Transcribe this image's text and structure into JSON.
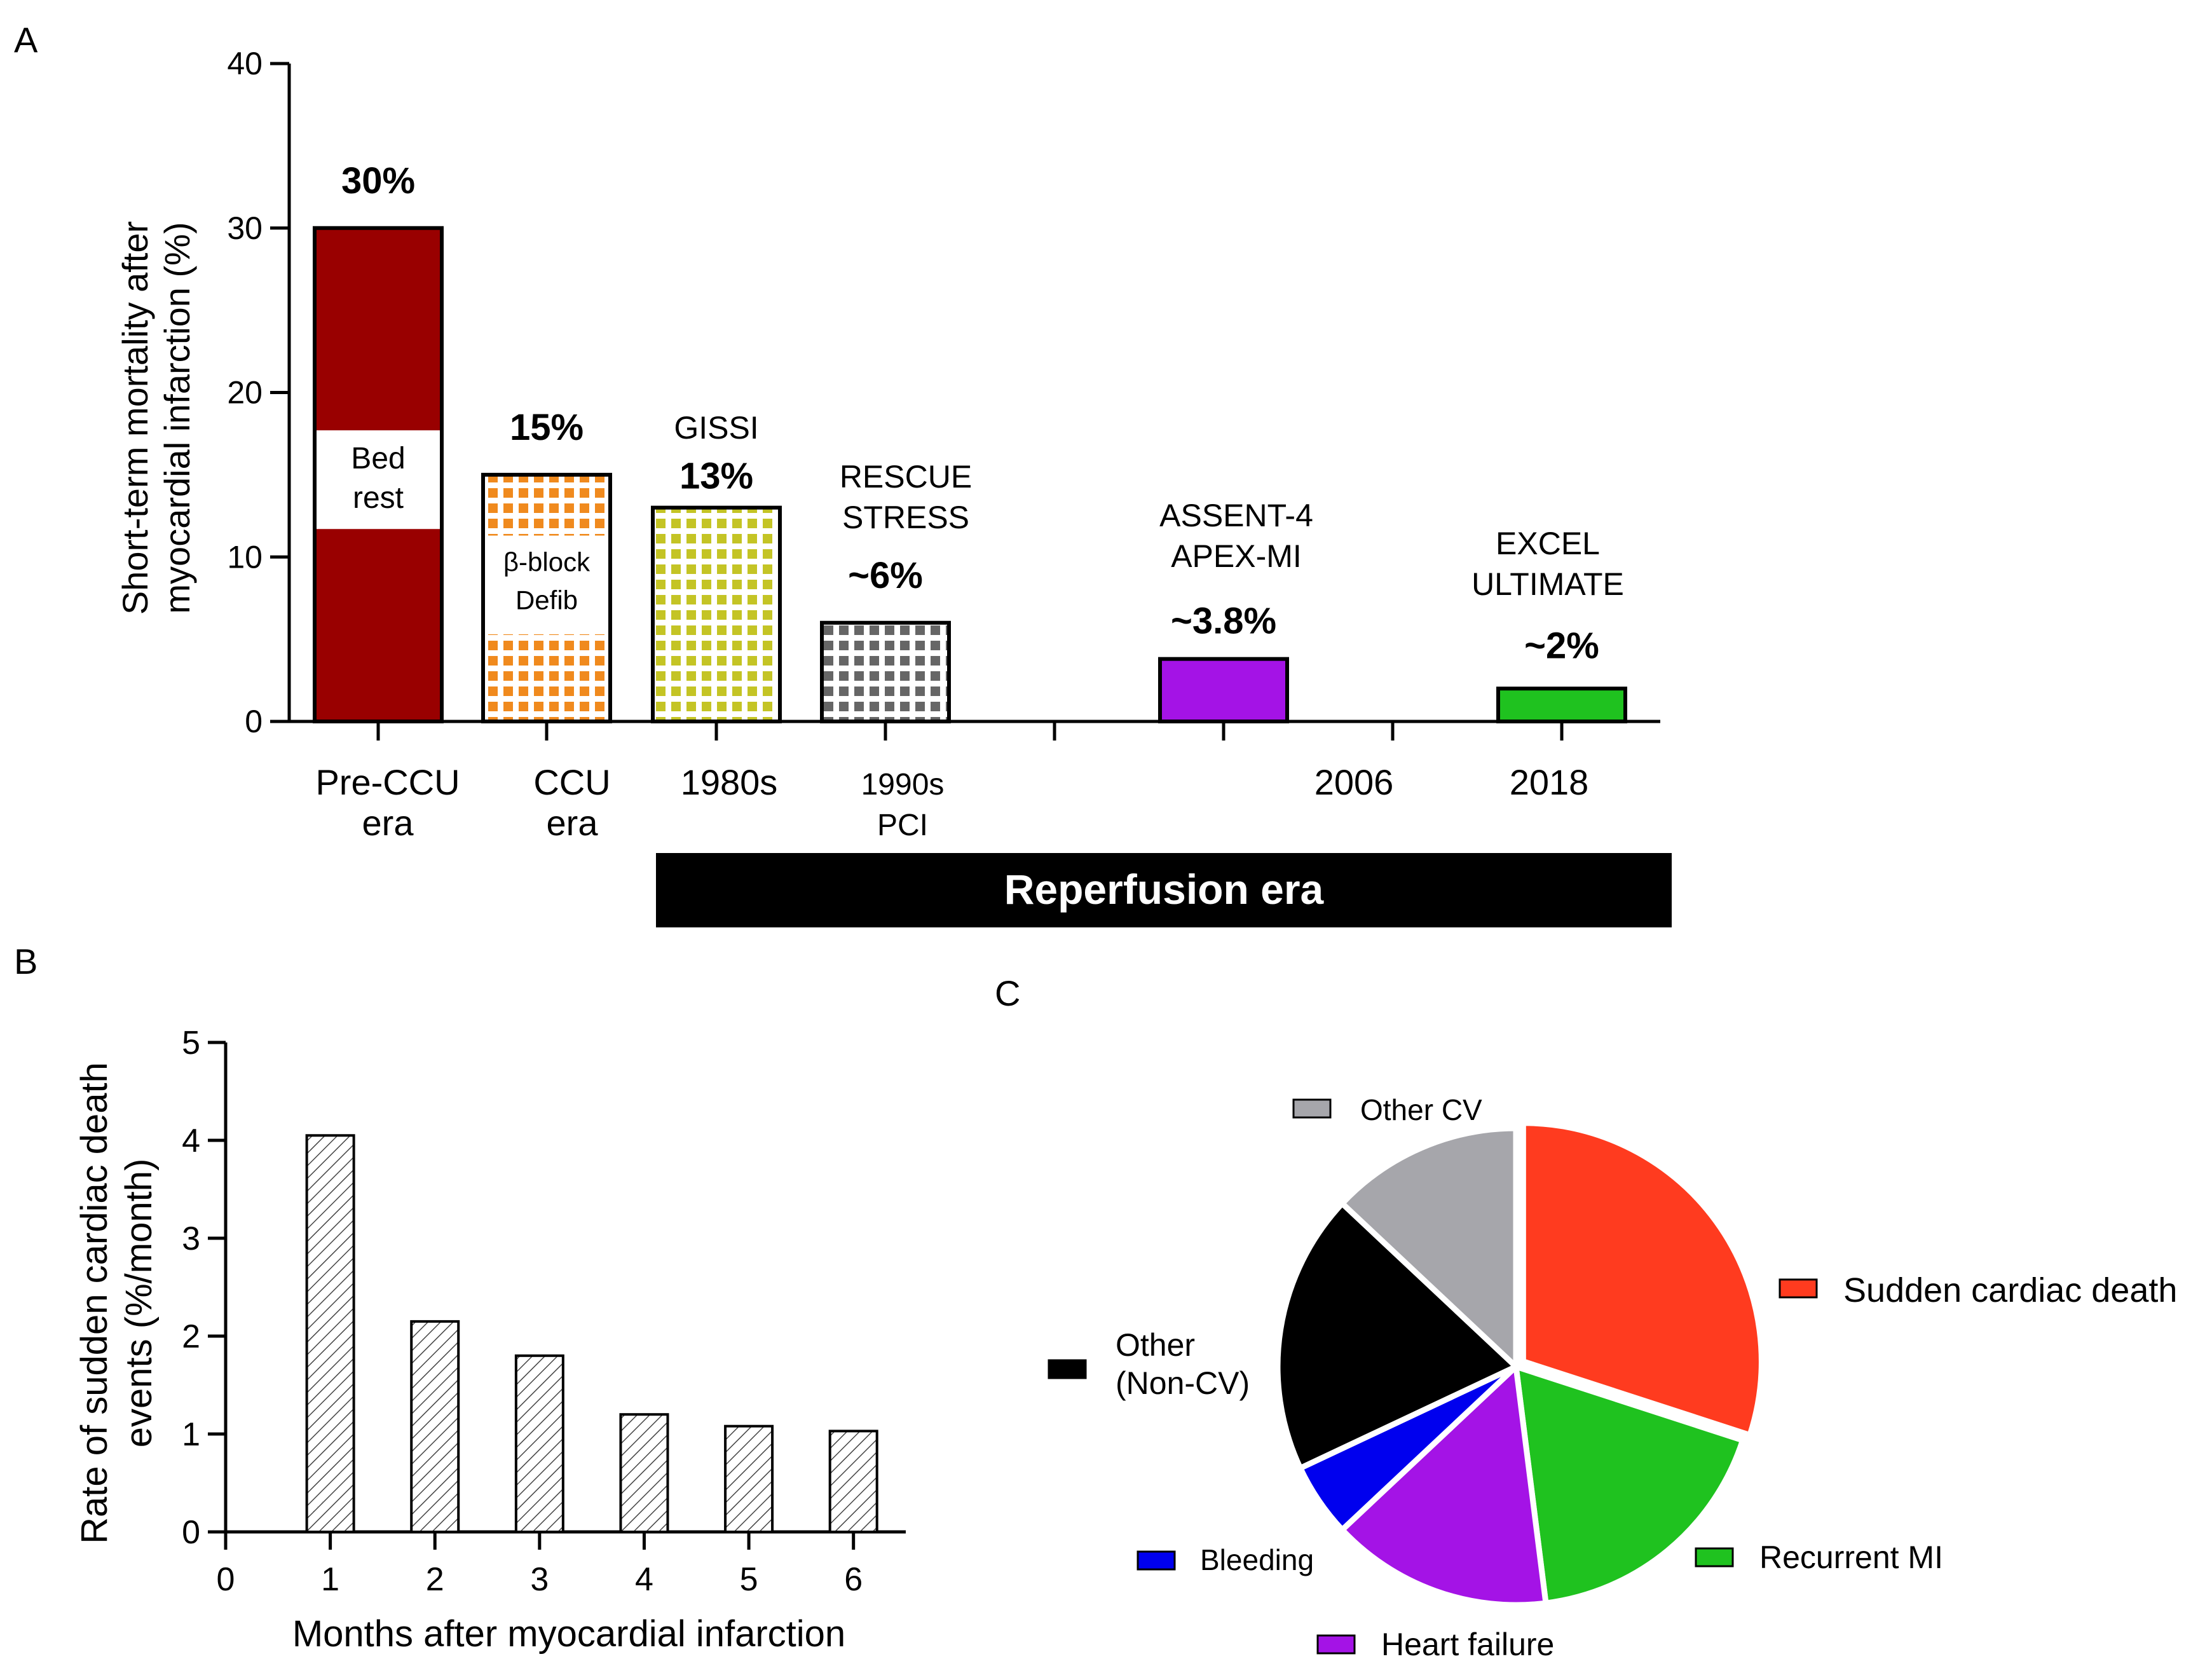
{
  "panel_labels": {
    "a": "A",
    "b": "B",
    "c": "C"
  },
  "chart_data": [
    {
      "id": "A",
      "type": "bar",
      "ylabel_lines": [
        "Short-term mortality after",
        "myocardial infarction (%)"
      ],
      "ylim": [
        0,
        40
      ],
      "yticks": [
        "0",
        "10",
        "20",
        "30",
        "40"
      ],
      "bars": [
        {
          "x_label_lines": [
            "Pre-CCU",
            "era"
          ],
          "value": 30,
          "value_label": "30%",
          "color": "#990000",
          "pattern": "solid",
          "inner_lines": [
            "Bed",
            "rest"
          ],
          "header_lines": []
        },
        {
          "x_label_lines": [
            "CCU",
            "era"
          ],
          "value": 15,
          "value_label": "15%",
          "color": "#f08a1e",
          "pattern": "grid",
          "inner_lines": [
            "β-block",
            "Defib"
          ],
          "header_lines": []
        },
        {
          "x_label_lines": [
            "1980s"
          ],
          "value": 13,
          "value_label": "13%",
          "color": "#c4c425",
          "pattern": "grid",
          "inner_lines": [],
          "header_lines": [
            "GISSI"
          ]
        },
        {
          "x_label_lines": [
            "1990s",
            "PCI"
          ],
          "value": 6,
          "value_label": "~6%",
          "color": "#666666",
          "pattern": "grid",
          "inner_lines": [],
          "header_lines": [
            "RESCUE",
            "STRESS"
          ]
        },
        {
          "x_label_lines": [],
          "value": 3.8,
          "value_label": "~3.8%",
          "color": "#a413e6",
          "pattern": "solid",
          "inner_lines": [],
          "header_lines": [
            "ASSENT-4",
            "APEX-MI"
          ]
        },
        {
          "x_label_lines": [
            "2018"
          ],
          "value": 2,
          "value_label": "~2%",
          "color": "#1fc21f",
          "pattern": "solid",
          "inner_lines": [],
          "header_lines": [
            "EXCEL",
            "ULTIMATE"
          ]
        }
      ],
      "extra_x_label": "2006",
      "era_banner": "Reperfusion era"
    },
    {
      "id": "B",
      "type": "bar",
      "xlabel": "Months after myocardial infarction",
      "ylabel_lines": [
        "Rate of sudden cardiac death",
        "events (%/month)"
      ],
      "x_ticks": [
        "0",
        "1",
        "2",
        "3",
        "4",
        "5",
        "6"
      ],
      "yticks": [
        "0",
        "1",
        "2",
        "3",
        "4",
        "5"
      ],
      "ylim": [
        0,
        5
      ],
      "xlim": [
        0,
        6.5
      ],
      "x": [
        1,
        2,
        3,
        4,
        5,
        6
      ],
      "values": [
        4.05,
        2.15,
        1.8,
        1.2,
        1.08,
        1.03
      ],
      "pattern": "diagonal-hatch"
    },
    {
      "id": "C",
      "type": "pie",
      "slices": [
        {
          "label": "Sudden cardiac death",
          "value": 30,
          "color": "#ff3b1f"
        },
        {
          "label": "Recurrent MI",
          "value": 18,
          "color": "#1fc21f"
        },
        {
          "label": "Heart failure",
          "value": 15,
          "color": "#a413e6"
        },
        {
          "label": "Bleeding",
          "value": 5,
          "color": "#0000ee"
        },
        {
          "label": "Other (Non-CV)",
          "value": 19,
          "color": "#000000"
        },
        {
          "label": "Other CV",
          "value": 13,
          "color": "#a6a6ab"
        }
      ],
      "legend_lines": {
        "Sudden cardiac death": [
          "Sudden cardiac death"
        ],
        "Recurrent MI": [
          "Recurrent MI"
        ],
        "Heart failure": [
          "Heart failure"
        ],
        "Bleeding": [
          "Bleeding"
        ],
        "Other (Non-CV)": [
          "Other",
          "(Non-CV)"
        ],
        "Other CV": [
          "Other CV"
        ]
      }
    }
  ]
}
